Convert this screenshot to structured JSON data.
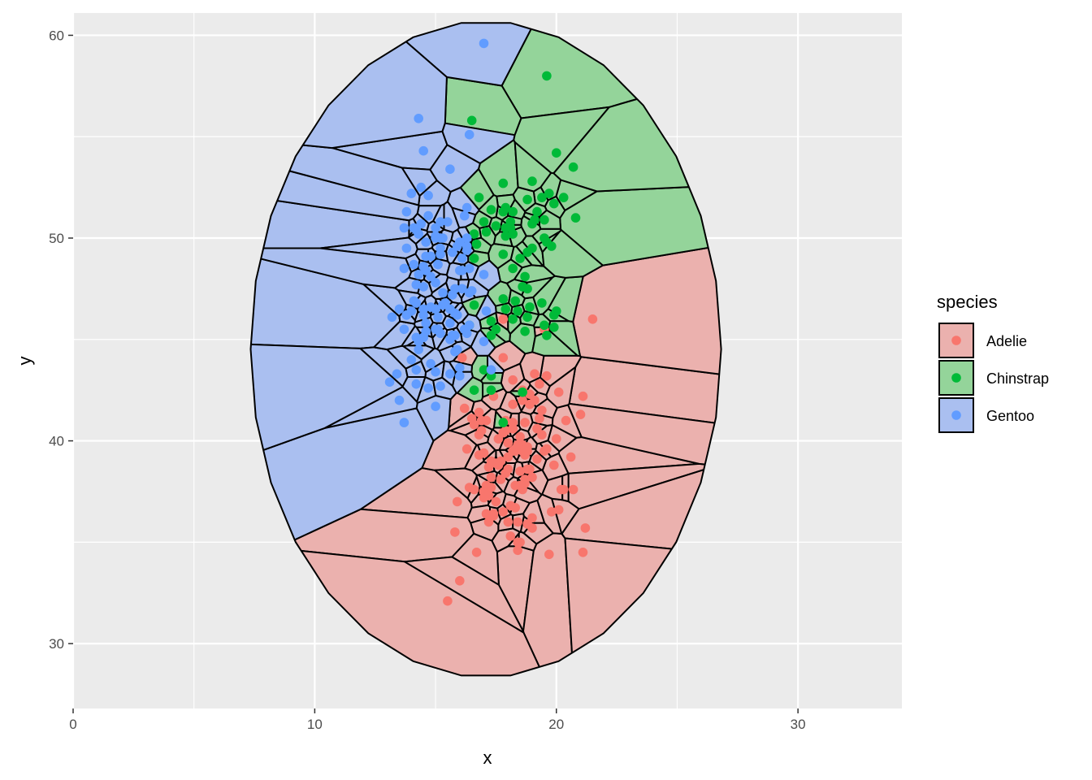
{
  "chart_data": {
    "type": "scatter",
    "subtype": "voronoi-tessellation",
    "title": "",
    "xlabel": "x",
    "ylabel": "y",
    "xlim": [
      0,
      34.3
    ],
    "ylim": [
      26.8,
      61.1
    ],
    "x_ticks": [
      0,
      10,
      20,
      30
    ],
    "y_ticks": [
      30,
      40,
      50,
      60
    ],
    "grid": true,
    "legend": {
      "title": "species",
      "position": "right"
    },
    "series": [
      {
        "name": "Adelie",
        "color": "#F8766D",
        "x": [
          17.1,
          18.2,
          19.4,
          18.3,
          18.7,
          17.5,
          18.0,
          19.3,
          18.9,
          18.4,
          20.1,
          17.2,
          18.6,
          19.7,
          17.8,
          18.5,
          17.3,
          18.8,
          19.0,
          17.6,
          18.1,
          19.2,
          17.9,
          18.7,
          16.9,
          18.3,
          17.0,
          19.5,
          18.2,
          17.4,
          20.6,
          19.9,
          21.1,
          20.2,
          18.6,
          17.8,
          16.6,
          17.2,
          16.1,
          15.9,
          16.3,
          16.5,
          17.0,
          18.0,
          18.9,
          19.6,
          17.6,
          18.4,
          19.1,
          16.7,
          16.8,
          17.7,
          18.2,
          19.8,
          20.7,
          21.2,
          21.0,
          20.3,
          19.3,
          17.1,
          16.2,
          15.8,
          15.5,
          16.0,
          18.5,
          19.0,
          18.3,
          17.5,
          17.2,
          17.9,
          18.8,
          19.4,
          18.6,
          18.1,
          17.7,
          16.8,
          20.0,
          20.4,
          17.3,
          18.8,
          18.4,
          19.6,
          20.1,
          18.7,
          17.0,
          16.4,
          16.9,
          21.5,
          18.9,
          21.1,
          18.3,
          17.8,
          18.0,
          17.4,
          18.5,
          19.2,
          17.6,
          16.6,
          17.4,
          18.2,
          19.1,
          18.6,
          17.9,
          18.0,
          18.4,
          18.7,
          18.2,
          18.8,
          19.0,
          18.5,
          17.1,
          16.8,
          17.3,
          18.6,
          19.3,
          19.5,
          18.2,
          17.8
        ],
        "y": [
          37.8,
          39.5,
          40.3,
          36.7,
          39.3,
          38.9,
          39.2,
          41.1,
          38.6,
          34.6,
          36.6,
          38.7,
          42.5,
          34.4,
          46.0,
          37.8,
          37.7,
          35.9,
          38.2,
          38.8,
          35.3,
          40.6,
          40.5,
          37.9,
          40.5,
          39.5,
          37.2,
          39.5,
          40.9,
          36.4,
          39.2,
          38.8,
          42.2,
          37.6,
          39.8,
          36.5,
          40.8,
          36.0,
          44.1,
          37.0,
          39.6,
          41.1,
          37.5,
          36.0,
          42.3,
          39.6,
          40.1,
          35.0,
          42.0,
          34.5,
          41.4,
          39.0,
          40.6,
          36.5,
          37.6,
          35.7,
          41.3,
          37.6,
          41.1,
          36.4,
          41.6,
          35.5,
          32.1,
          33.1,
          35.0,
          36.2,
          39.6,
          37.0,
          37.3,
          38.4,
          38.6,
          41.5,
          39.5,
          36.8,
          38.1,
          39.3,
          40.1,
          41.0,
          38.2,
          39.7,
          36.0,
          43.2,
          42.4,
          40.9,
          39.4,
          37.7,
          41.0,
          46.0,
          41.8,
          34.5,
          37.8,
          40.4,
          39.9,
          36.3,
          40.2,
          39.1,
          38.8,
          37.6,
          42.2,
          41.8,
          43.3,
          42.0,
          41.0,
          38.6,
          39.8,
          38.1,
          40.6,
          39.5,
          35.7,
          38.5,
          41.0,
          40.3,
          39.0,
          37.6,
          42.8,
          45.5,
          43.0,
          44.1
        ],
        "values": [
          37.8,
          39.5,
          40.3,
          36.7,
          39.3,
          38.9,
          39.2,
          41.1,
          38.6,
          34.6,
          36.6,
          38.7,
          42.5,
          34.4,
          46.0,
          37.8,
          37.7,
          35.9,
          38.2,
          38.8,
          35.3,
          40.6,
          40.5,
          37.9,
          40.5,
          39.5,
          37.2,
          39.5,
          40.9,
          36.4,
          39.2,
          38.8,
          42.2,
          37.6,
          39.8,
          36.5,
          40.8,
          36.0,
          44.1,
          37.0,
          39.6,
          41.1,
          37.5,
          36.0,
          42.3,
          39.6,
          40.1,
          35.0,
          42.0,
          34.5,
          41.4,
          39.0,
          40.6,
          36.5,
          37.6,
          35.7,
          41.3,
          37.6,
          41.1,
          36.4,
          41.6,
          35.5,
          32.1,
          33.1,
          35.0,
          36.2,
          39.6,
          37.0,
          37.3,
          38.4,
          38.6,
          41.5,
          39.5,
          36.8,
          38.1,
          39.3,
          40.1,
          41.0,
          38.2,
          39.7,
          36.0,
          43.2,
          42.4,
          40.9,
          39.4,
          37.7,
          41.0,
          46.0,
          41.8,
          34.5,
          37.8,
          40.4,
          39.9,
          36.3,
          40.2,
          39.1,
          38.8,
          37.6,
          42.2,
          41.8,
          43.3,
          42.0,
          41.0,
          38.6,
          39.8,
          38.1,
          40.6,
          39.5,
          35.7,
          38.5,
          41.0,
          40.3,
          39.0,
          37.6,
          42.8,
          45.5,
          43.0,
          44.1
        ]
      },
      {
        "name": "Chinstrap",
        "color": "#00BA38",
        "x": [
          17.9,
          19.5,
          19.2,
          18.7,
          17.8,
          19.6,
          18.8,
          17.8,
          18.2,
          18.2,
          18.9,
          19.9,
          17.8,
          20.3,
          17.3,
          18.1,
          17.1,
          19.6,
          20.0,
          17.8,
          18.6,
          18.2,
          17.3,
          17.5,
          16.6,
          19.4,
          17.9,
          19.0,
          18.4,
          19.0,
          17.8,
          20.0,
          16.6,
          20.8,
          16.7,
          18.8,
          18.6,
          16.8,
          18.3,
          20.7,
          16.6,
          19.9,
          19.5,
          17.5,
          19.1,
          17.0,
          17.9,
          18.5,
          17.9,
          19.6,
          18.7,
          17.3,
          16.4,
          19.0,
          17.3,
          19.7,
          17.3,
          18.8,
          16.6,
          19.9,
          18.8,
          19.4,
          19.5,
          16.5,
          17.0,
          19.8,
          18.1,
          18.2
        ],
        "y": [
          46.5,
          50.0,
          51.3,
          45.4,
          52.7,
          45.2,
          46.1,
          51.3,
          46.0,
          51.3,
          46.6,
          51.7,
          47.0,
          52.0,
          45.9,
          50.5,
          50.3,
          58.0,
          46.4,
          49.2,
          42.4,
          48.5,
          43.2,
          50.6,
          46.7,
          52.0,
          50.5,
          49.5,
          46.4,
          52.8,
          40.9,
          54.2,
          42.5,
          51.0,
          49.7,
          47.5,
          47.6,
          52.0,
          46.9,
          53.5,
          49.0,
          46.2,
          50.9,
          45.5,
          50.9,
          50.8,
          50.1,
          49.0,
          51.5,
          49.8,
          48.1,
          51.4,
          45.7,
          50.7,
          42.5,
          52.2,
          45.2,
          49.3,
          50.2,
          45.6,
          51.9,
          46.8,
          45.7,
          55.8,
          43.5,
          49.6,
          50.8,
          50.2
        ],
        "values": [
          46.5,
          50.0,
          51.3,
          45.4,
          52.7,
          45.2,
          46.1,
          51.3,
          46.0,
          51.3,
          46.6,
          51.7,
          47.0,
          52.0,
          45.9,
          50.5,
          50.3,
          58.0,
          46.4,
          49.2,
          42.4,
          48.5,
          43.2,
          50.6,
          46.7,
          52.0,
          50.5,
          49.5,
          46.4,
          52.8,
          40.9,
          54.2,
          42.5,
          51.0,
          49.7,
          47.5,
          47.6,
          52.0,
          46.9,
          53.5,
          49.0,
          46.2,
          50.9,
          45.5,
          50.9,
          50.8,
          50.1,
          49.0,
          51.5,
          49.8,
          48.1,
          51.4,
          45.7,
          50.7,
          42.5,
          52.2,
          45.2,
          49.3,
          50.2,
          45.6,
          51.9,
          46.8,
          45.7,
          55.8,
          43.5,
          49.6,
          50.8,
          50.2
        ]
      },
      {
        "name": "Gentoo",
        "color": "#619CFF",
        "x": [
          13.2,
          16.3,
          14.1,
          15.2,
          14.5,
          13.5,
          14.6,
          15.3,
          13.4,
          15.4,
          13.7,
          16.1,
          13.7,
          14.6,
          14.6,
          15.7,
          13.5,
          15.2,
          14.5,
          15.1,
          14.3,
          14.5,
          14.5,
          15.8,
          13.1,
          15.1,
          14.3,
          15.0,
          14.3,
          15.3,
          15.3,
          14.2,
          14.5,
          17.0,
          14.8,
          16.1,
          14.7,
          15.8,
          14.0,
          15.1,
          15.2,
          15.9,
          15.2,
          16.3,
          14.1,
          16.0,
          16.2,
          13.7,
          14.3,
          15.7,
          14.8,
          16.4,
          14.2,
          15.0,
          15.6,
          15.6,
          14.8,
          15.0,
          16.0,
          14.2,
          16.3,
          13.8,
          16.4,
          14.5,
          15.6,
          14.6,
          15.9,
          13.8,
          17.3,
          14.4,
          14.2,
          14.0,
          17.0,
          15.0,
          17.1,
          14.5,
          16.1,
          14.7,
          15.7,
          15.8,
          14.6,
          14.4,
          16.5,
          15.0,
          17.0,
          15.5,
          15.0,
          13.8,
          16.1,
          14.7,
          15.8,
          14.0,
          15.1,
          15.2,
          15.9,
          15.2,
          16.3,
          14.1,
          16.0,
          16.2,
          13.7,
          14.3,
          15.7,
          14.8,
          16.4,
          14.2,
          15.0,
          15.6,
          15.6,
          14.8,
          15.0,
          16.0,
          14.2,
          16.3,
          13.8,
          16.4
        ],
        "y": [
          46.1,
          50.0,
          48.7,
          50.0,
          47.6,
          46.5,
          45.4,
          46.7,
          43.3,
          46.8,
          40.9,
          49.0,
          45.5,
          48.4,
          45.8,
          49.3,
          42.0,
          49.2,
          46.2,
          48.7,
          50.2,
          45.1,
          46.5,
          46.3,
          42.9,
          46.1,
          44.5,
          47.8,
          48.2,
          50.0,
          47.3,
          42.8,
          45.1,
          59.6,
          49.1,
          48.4,
          42.6,
          44.4,
          44.0,
          48.7,
          42.7,
          49.6,
          45.3,
          49.6,
          50.5,
          43.6,
          45.5,
          50.5,
          44.9,
          45.2,
          46.6,
          48.5,
          45.1,
          50.1,
          46.5,
          45.0,
          43.8,
          45.5,
          43.2,
          50.4,
          45.3,
          46.2,
          45.7,
          54.3,
          45.8,
          49.8,
          46.2,
          49.5,
          43.5,
          50.7,
          47.7,
          46.4,
          48.2,
          46.5,
          46.4,
          48.6,
          47.5,
          51.1,
          45.2,
          45.2,
          49.1,
          52.5,
          47.4,
          50.0,
          44.9,
          50.8,
          43.4,
          51.3,
          47.5,
          52.1,
          47.5,
          52.2,
          45.5,
          49.5,
          44.5,
          50.8,
          49.4,
          46.9,
          48.4,
          51.1,
          48.5,
          55.9,
          47.2,
          49.1,
          47.3,
          46.8,
          41.7,
          53.4,
          43.3,
          48.1,
          50.5,
          49.8,
          43.5,
          51.5,
          46.2,
          55.1
        ],
        "values": [
          46.1,
          50.0,
          48.7,
          50.0,
          47.6,
          46.5,
          45.4,
          46.7,
          43.3,
          46.8,
          40.9,
          49.0,
          45.5,
          48.4,
          45.8,
          49.3,
          42.0,
          49.2,
          46.2,
          48.7,
          50.2,
          45.1,
          46.5,
          46.3,
          42.9,
          46.1,
          44.5,
          47.8,
          48.2,
          50.0,
          47.3,
          42.8,
          45.1,
          59.6,
          49.1,
          48.4,
          42.6,
          44.4,
          44.0,
          48.7,
          42.7,
          49.6,
          45.3,
          49.6,
          50.5,
          43.6,
          45.5,
          50.5,
          44.9,
          45.2,
          46.6,
          48.5,
          45.1,
          50.1,
          46.5,
          45.0,
          43.8,
          45.5,
          43.2,
          50.4,
          45.3,
          46.2,
          45.7,
          54.3,
          45.8,
          49.8,
          46.2,
          49.5,
          43.5,
          50.7,
          47.7,
          46.4,
          48.2,
          46.5,
          46.4,
          48.6,
          47.5,
          51.1,
          45.2,
          45.2,
          49.1,
          52.5,
          47.4,
          50.0,
          44.9,
          50.8,
          43.4,
          51.3,
          47.5,
          52.1,
          47.5,
          52.2,
          45.5,
          49.5,
          44.5,
          50.8,
          49.4,
          46.9,
          48.4,
          51.1,
          48.5,
          55.9,
          47.2,
          49.1,
          47.3,
          46.8,
          41.7,
          53.4,
          43.3,
          48.1,
          50.5,
          49.8,
          43.5,
          51.5,
          46.2,
          55.1
        ]
      }
    ]
  },
  "colors": {
    "panel_background": "#EBEBEB",
    "grid_major": "#FFFFFF",
    "cell_stroke": "#000000",
    "Adelie_fill": "#EBB1AE",
    "Chinstrap_fill": "#94D49A",
    "Gentoo_fill": "#AABFF0"
  }
}
